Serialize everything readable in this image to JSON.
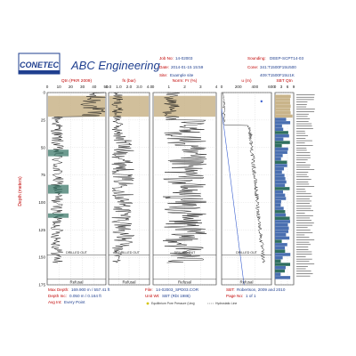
{
  "header": {
    "logo_text": "CONETEC",
    "company": "ABC Engineering",
    "job_label": "Job No:",
    "job_value": "14-02003",
    "date_label": "Date:",
    "date_value": "2014-01-15 15:59",
    "site_label": "Site:",
    "site_value": "Example site",
    "sounding_label": "Sounding:",
    "sounding_value": "DEEP-SCPT14-03",
    "cone_label": "Cone:",
    "cone_value": "341:T1500F15U500",
    "cone_value2": "409:T1500F15U1K"
  },
  "colors": {
    "title_red": "#c00000",
    "brand_blue": "#1f3f8f",
    "trace": "#1a1a1a",
    "sand_fill": "#c9b48a",
    "highlight_fill": "#2f6f5f",
    "sbt_blue": "#4a6fb0",
    "pore_pressure": "#3a5fd0"
  },
  "chart_data": [
    {
      "type": "line",
      "title": "Qtn (PKR 2009)",
      "xlim": [
        0,
        50
      ],
      "xticks": [
        "0",
        "10",
        "20",
        "30",
        "40",
        "50"
      ],
      "ylabel": "Depth (meters)",
      "ylim": [
        0,
        175
      ],
      "yticks": [
        "0",
        "25",
        "50",
        "75",
        "100",
        "125",
        "150",
        "175"
      ],
      "annotations": [
        "DRILLED OUT",
        "Refusal"
      ]
    },
    {
      "type": "line",
      "title": "fs (bar)",
      "xlim": [
        0,
        4.0
      ],
      "xticks": [
        "0.0",
        "1.0",
        "2.0",
        "3.0",
        "4.0"
      ],
      "ylim": [
        0,
        175
      ],
      "annotations": [
        "DRILLED OUT",
        "Refusal"
      ]
    },
    {
      "type": "line",
      "title": "Norm: Fr (%)",
      "xlim": [
        0,
        4
      ],
      "xticks": [
        "0",
        "1",
        "2",
        "3",
        "4"
      ],
      "ylim": [
        0,
        175
      ],
      "annotations": [
        "DRILLED OUT",
        "Refusal"
      ]
    },
    {
      "type": "line",
      "title": "u (m)",
      "xlim": [
        0,
        600
      ],
      "xticks": [
        "0",
        "200",
        "400",
        "600"
      ],
      "ylim": [
        0,
        175
      ],
      "annotations": [
        "DRILLED OUT",
        "Refusal"
      ]
    },
    {
      "type": "bar",
      "title": "SBT Qtn",
      "xlim": [
        0,
        9
      ],
      "xticks": [
        "0",
        "3",
        "6",
        "9"
      ],
      "ylim": [
        0,
        175
      ]
    }
  ],
  "footer": {
    "max_depth_label": "Max Depth:",
    "max_depth_value": "169.900 m / 557.41 ft",
    "depth_inc_label": "Depth Inc:",
    "depth_inc_value": "0.050 m / 0.164 ft",
    "avg_int_label": "Avg Int:",
    "avg_int_value": "Every Point",
    "file_label": "File:",
    "file_value": "14-02003_SPD03.COR",
    "unit_wt_label": "Unit Wt:",
    "unit_wt_value": "SBT (Rbt 1986)",
    "sbt_label": "SBT:",
    "sbt_value": "Robertson, 2009 and 2010",
    "page_label": "Page No:",
    "page_value": "1 of 1",
    "legend_eq": "Equilibrium Pore Pressure (Ueq)",
    "legend_hydro": "Hydrostatic Line"
  }
}
